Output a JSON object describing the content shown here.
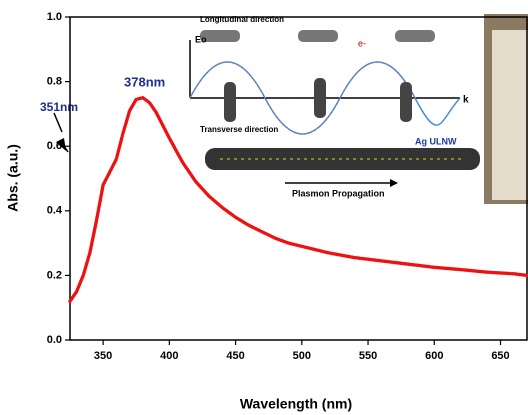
{
  "chart_data": {
    "type": "line",
    "xlabel": "Wavelength (nm)",
    "ylabel": "Abs. (a.u.)",
    "xlim": [
      325,
      670
    ],
    "ylim": [
      0,
      1
    ],
    "xticks": [
      350,
      400,
      450,
      500,
      550,
      600,
      650
    ],
    "yticks": [
      {
        "value": 0,
        "label": "0.0"
      },
      0.2,
      0.4,
      0.6,
      0.8,
      {
        "value": 1,
        "label": "1.0"
      }
    ],
    "series": [
      {
        "color": "#ee1111",
        "x": [
          325,
          330,
          335,
          340,
          345,
          350,
          355,
          360,
          365,
          370,
          375,
          380,
          385,
          390,
          395,
          400,
          410,
          420,
          430,
          440,
          450,
          460,
          470,
          480,
          490,
          500,
          520,
          540,
          560,
          580,
          600,
          620,
          640,
          660,
          670
        ],
        "values": [
          0.12,
          0.15,
          0.2,
          0.27,
          0.37,
          0.48,
          0.52,
          0.56,
          0.64,
          0.71,
          0.745,
          0.75,
          0.735,
          0.705,
          0.665,
          0.625,
          0.55,
          0.49,
          0.445,
          0.41,
          0.38,
          0.355,
          0.335,
          0.315,
          0.3,
          0.29,
          0.27,
          0.255,
          0.245,
          0.235,
          0.225,
          0.218,
          0.21,
          0.205,
          0.2
        ]
      }
    ],
    "annotations": [
      "378nm",
      "351nm"
    ],
    "inset_labels": [
      "Longitudinal direction",
      "Eo",
      "e-",
      "k",
      "Transverse direction",
      "Ag ULNW",
      "Plasmon Propagation"
    ]
  }
}
